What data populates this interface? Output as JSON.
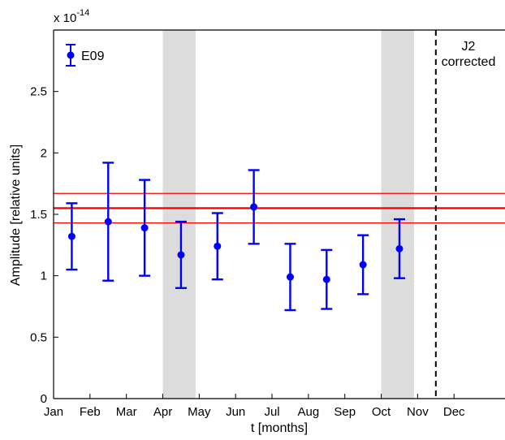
{
  "chart_data": {
    "type": "scatter",
    "xlabel": "t [months]",
    "ylabel": "Amplitude [relative units]",
    "y_multiplier_base": "x 10",
    "y_multiplier_exp": "-14",
    "x_ticks": [
      "Jan",
      "Feb",
      "Mar",
      "Apr",
      "May",
      "Jun",
      "Jul",
      "Aug",
      "Sep",
      "Oct",
      "Nov",
      "Dec"
    ],
    "y_ticks": [
      "0",
      "0.5",
      "1",
      "1.5",
      "2",
      "2.5"
    ],
    "xlim": [
      0,
      12.4
    ],
    "ylim": [
      0,
      3
    ],
    "grid": false,
    "legend_position": "top-left",
    "series": [
      {
        "name": "E09",
        "color": "#0000ff",
        "points": [
          {
            "x": 0.5,
            "y": 1.32,
            "low": 1.05,
            "high": 1.59
          },
          {
            "x": 1.5,
            "y": 1.44,
            "low": 0.96,
            "high": 1.92
          },
          {
            "x": 2.5,
            "y": 1.39,
            "low": 1.0,
            "high": 1.78
          },
          {
            "x": 3.5,
            "y": 1.17,
            "low": 0.9,
            "high": 1.44
          },
          {
            "x": 4.5,
            "y": 1.24,
            "low": 0.97,
            "high": 1.51
          },
          {
            "x": 5.5,
            "y": 1.56,
            "low": 1.26,
            "high": 1.86
          },
          {
            "x": 6.5,
            "y": 0.99,
            "low": 0.72,
            "high": 1.26
          },
          {
            "x": 7.5,
            "y": 0.97,
            "low": 0.73,
            "high": 1.21
          },
          {
            "x": 8.5,
            "y": 1.09,
            "low": 0.85,
            "high": 1.33
          },
          {
            "x": 9.5,
            "y": 1.22,
            "low": 0.98,
            "high": 1.46
          }
        ]
      }
    ],
    "reference_lines": {
      "color": "#ff0000",
      "mean": 1.55,
      "lower": 1.43,
      "upper": 1.67
    },
    "shaded_regions": [
      {
        "from": 3.0,
        "to": 3.9,
        "color": "#dcdcdc"
      },
      {
        "from": 9.0,
        "to": 9.9,
        "color": "#dcdcdc"
      }
    ],
    "vertical_line": {
      "x": 10.5,
      "style": "dashed",
      "color": "#000000"
    },
    "annotation": {
      "line1": "J2",
      "line2": "corrected"
    }
  }
}
